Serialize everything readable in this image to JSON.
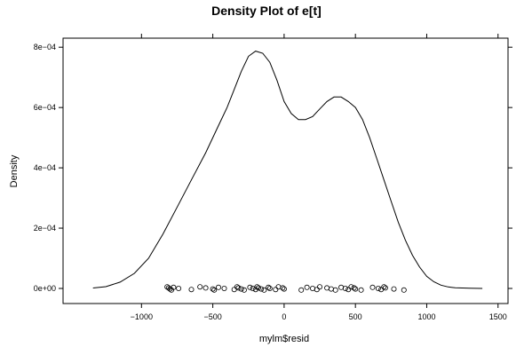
{
  "chart_data": {
    "type": "line",
    "title": "Density Plot of e[t]",
    "xlabel": "mylm$resid",
    "ylabel": "Density",
    "xlim": [
      -1550,
      1570
    ],
    "ylim": [
      -5e-05,
      0.00083
    ],
    "x_ticks": [
      -1000,
      -500,
      0,
      500,
      1000,
      1500
    ],
    "x_tick_labels": [
      "−1000",
      "−500",
      "0",
      "500",
      "1000",
      "1500"
    ],
    "y_ticks": [
      0,
      0.0002,
      0.0004,
      0.0006,
      0.0008
    ],
    "y_tick_labels": [
      "0e+00",
      "2e−04",
      "4e−04",
      "6e−04",
      "8e−04"
    ],
    "grid": false,
    "line_color": "#000000",
    "series": [
      {
        "x": [
          -1340,
          -1250,
          -1150,
          -1050,
          -950,
          -850,
          -750,
          -650,
          -550,
          -450,
          -400,
          -350,
          -300,
          -250,
          -200,
          -150,
          -100,
          -50,
          0,
          50,
          100,
          150,
          200,
          250,
          300,
          350,
          400,
          450,
          500,
          550,
          600,
          650,
          700,
          750,
          800,
          850,
          900,
          950,
          1000,
          1050,
          1100,
          1150,
          1200,
          1300,
          1390
        ],
        "y": [
          1.5e-06,
          6e-06,
          2.1e-05,
          5e-05,
          0.0001,
          0.00018,
          0.00027,
          0.00036,
          0.00045,
          0.00055,
          0.0006,
          0.00066,
          0.00072,
          0.00077,
          0.000787,
          0.00078,
          0.00075,
          0.00069,
          0.00062,
          0.00058,
          0.00056,
          0.00056,
          0.00057,
          0.000595,
          0.00062,
          0.000635,
          0.000635,
          0.00062,
          0.0006,
          0.00056,
          0.0005,
          0.00043,
          0.00036,
          0.00029,
          0.00022,
          0.00016,
          0.00011,
          7.1e-05,
          4e-05,
          2.2e-05,
          1.1e-05,
          5e-06,
          2e-06,
          5e-07,
          1e-07
        ]
      }
    ],
    "rug_points": [
      -820,
      -810,
      -800,
      -790,
      -775,
      -740,
      -650,
      -590,
      -550,
      -500,
      -490,
      -460,
      -420,
      -350,
      -330,
      -320,
      -300,
      -280,
      -240,
      -220,
      -200,
      -190,
      -180,
      -160,
      -140,
      -110,
      -100,
      -60,
      -40,
      -10,
      0,
      120,
      160,
      200,
      230,
      250,
      300,
      330,
      360,
      400,
      430,
      450,
      470,
      490,
      500,
      540,
      620,
      660,
      680,
      700,
      710,
      770,
      840
    ]
  }
}
